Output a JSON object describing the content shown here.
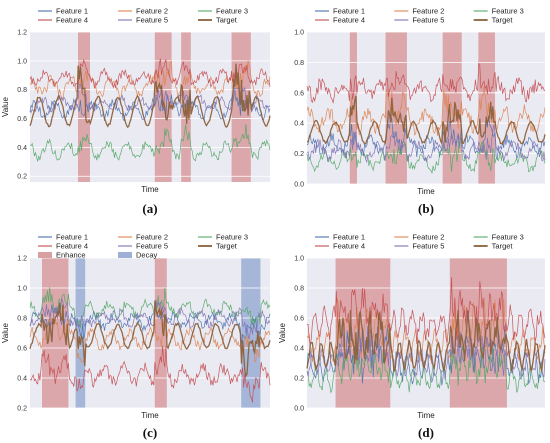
{
  "colors": {
    "Feature 1": "#4c72b0",
    "Feature 2": "#dd8452",
    "Feature 3": "#55a868",
    "Feature 4": "#c44e52",
    "Feature 5": "#8172b3",
    "Target": "#8c613c",
    "Enhance": "#d9a0a2",
    "Decay": "#9fb0d6",
    "panel_bg": "#eaeaf2"
  },
  "chart_data": [
    {
      "panel": "(a)",
      "caption": "(a)",
      "type": "line",
      "xlabel": "Time",
      "ylabel": "Value",
      "ylim": [
        0.16,
        1.2
      ],
      "yticks": [
        "0.2",
        "0.4",
        "0.6",
        "0.8",
        "1.0",
        "1.2"
      ],
      "grid": true,
      "legend_position": "top",
      "legend": [
        "Feature 1",
        "Feature 2",
        "Feature 3",
        "Feature 4",
        "Feature 5",
        "Target"
      ],
      "series": [
        {
          "name": "Feature 1",
          "mean": 0.66,
          "amp": 0.05,
          "noise": 0.03
        },
        {
          "name": "Feature 2",
          "mean": 0.82,
          "amp": 0.05,
          "noise": 0.04
        },
        {
          "name": "Feature 3",
          "mean": 0.38,
          "amp": 0.05,
          "noise": 0.03
        },
        {
          "name": "Feature 4",
          "mean": 0.88,
          "amp": 0.04,
          "noise": 0.03
        },
        {
          "name": "Feature 5",
          "mean": 0.7,
          "amp": 0.04,
          "noise": 0.03
        },
        {
          "name": "Target",
          "mean": 0.65,
          "amp": 0.1,
          "noise": 0.01
        }
      ],
      "highlight_regions": [
        {
          "type": "Enhance",
          "range": [
            0.2,
            0.25
          ]
        },
        {
          "type": "Enhance",
          "range": [
            0.52,
            0.59
          ]
        },
        {
          "type": "Enhance",
          "range": [
            0.63,
            0.67
          ]
        },
        {
          "type": "Enhance",
          "range": [
            0.84,
            0.92
          ]
        }
      ]
    },
    {
      "panel": "(b)",
      "caption": "(b)",
      "type": "line",
      "xlabel": "Time",
      "ylabel": "",
      "ylim": [
        0.0,
        1.0
      ],
      "yticks": [
        "0.0",
        "0.2",
        "0.4",
        "0.6",
        "0.8",
        "1.0"
      ],
      "grid": true,
      "legend_position": "top",
      "legend": [
        "Feature 1",
        "Feature 2",
        "Feature 3",
        "Feature 4",
        "Feature 5",
        "Target"
      ],
      "series": [
        {
          "name": "Feature 1",
          "mean": 0.25,
          "amp": 0.05,
          "noise": 0.04
        },
        {
          "name": "Feature 2",
          "mean": 0.42,
          "amp": 0.06,
          "noise": 0.05
        },
        {
          "name": "Feature 3",
          "mean": 0.15,
          "amp": 0.04,
          "noise": 0.04
        },
        {
          "name": "Feature 4",
          "mean": 0.62,
          "amp": 0.04,
          "noise": 0.05
        },
        {
          "name": "Feature 5",
          "mean": 0.22,
          "amp": 0.04,
          "noise": 0.04
        },
        {
          "name": "Target",
          "mean": 0.34,
          "amp": 0.07,
          "noise": 0.01
        }
      ],
      "highlight_regions": [
        {
          "type": "Enhance",
          "range": [
            0.18,
            0.21
          ]
        },
        {
          "type": "Enhance",
          "range": [
            0.33,
            0.42
          ]
        },
        {
          "type": "Enhance",
          "range": [
            0.57,
            0.65
          ]
        },
        {
          "type": "Enhance",
          "range": [
            0.72,
            0.79
          ]
        }
      ]
    },
    {
      "panel": "(c)",
      "caption": "(c)",
      "type": "line",
      "xlabel": "Time",
      "ylabel": "Value",
      "ylim": [
        0.2,
        1.2
      ],
      "yticks": [
        "0.2",
        "0.4",
        "0.6",
        "0.8",
        "1.0",
        "1.2"
      ],
      "grid": true,
      "legend_position": "top",
      "legend": [
        "Feature 1",
        "Feature 2",
        "Feature 3",
        "Feature 4",
        "Feature 5",
        "Target",
        "Enhance",
        "Decay"
      ],
      "series": [
        {
          "name": "Feature 1",
          "mean": 0.78,
          "amp": 0.04,
          "noise": 0.03
        },
        {
          "name": "Feature 2",
          "mean": 0.66,
          "amp": 0.05,
          "noise": 0.03
        },
        {
          "name": "Feature 3",
          "mean": 0.86,
          "amp": 0.04,
          "noise": 0.03
        },
        {
          "name": "Feature 4",
          "mean": 0.42,
          "amp": 0.05,
          "noise": 0.04
        },
        {
          "name": "Feature 5",
          "mean": 0.8,
          "amp": 0.04,
          "noise": 0.03
        },
        {
          "name": "Target",
          "mean": 0.68,
          "amp": 0.08,
          "noise": 0.01
        }
      ],
      "highlight_regions": [
        {
          "type": "Enhance",
          "range": [
            0.05,
            0.16
          ]
        },
        {
          "type": "Decay",
          "range": [
            0.19,
            0.23
          ]
        },
        {
          "type": "Enhance",
          "range": [
            0.52,
            0.57
          ]
        },
        {
          "type": "Decay",
          "range": [
            0.88,
            0.96
          ]
        }
      ]
    },
    {
      "panel": "(d)",
      "caption": "(d)",
      "type": "line",
      "xlabel": "Time",
      "ylabel": "Value",
      "ylim": [
        0.0,
        1.0
      ],
      "yticks": [
        "0.0",
        "0.2",
        "0.4",
        "0.6",
        "0.8",
        "1.0"
      ],
      "grid": true,
      "legend_position": "top",
      "legend": [
        "Feature 1",
        "Feature 2",
        "Feature 3",
        "Feature 4",
        "Feature 5",
        "Target"
      ],
      "series": [
        {
          "name": "Feature 1",
          "mean": 0.28,
          "amp": 0.08,
          "noise": 0.05
        },
        {
          "name": "Feature 2",
          "mean": 0.42,
          "amp": 0.08,
          "noise": 0.05
        },
        {
          "name": "Feature 3",
          "mean": 0.2,
          "amp": 0.06,
          "noise": 0.04
        },
        {
          "name": "Feature 4",
          "mean": 0.55,
          "amp": 0.08,
          "noise": 0.06
        },
        {
          "name": "Feature 5",
          "mean": 0.3,
          "amp": 0.07,
          "noise": 0.04
        },
        {
          "name": "Target",
          "mean": 0.35,
          "amp": 0.09,
          "noise": 0.02
        }
      ],
      "highlight_regions": [
        {
          "type": "Enhance",
          "range": [
            0.12,
            0.35
          ]
        },
        {
          "type": "Enhance",
          "range": [
            0.6,
            0.84
          ]
        }
      ]
    }
  ]
}
